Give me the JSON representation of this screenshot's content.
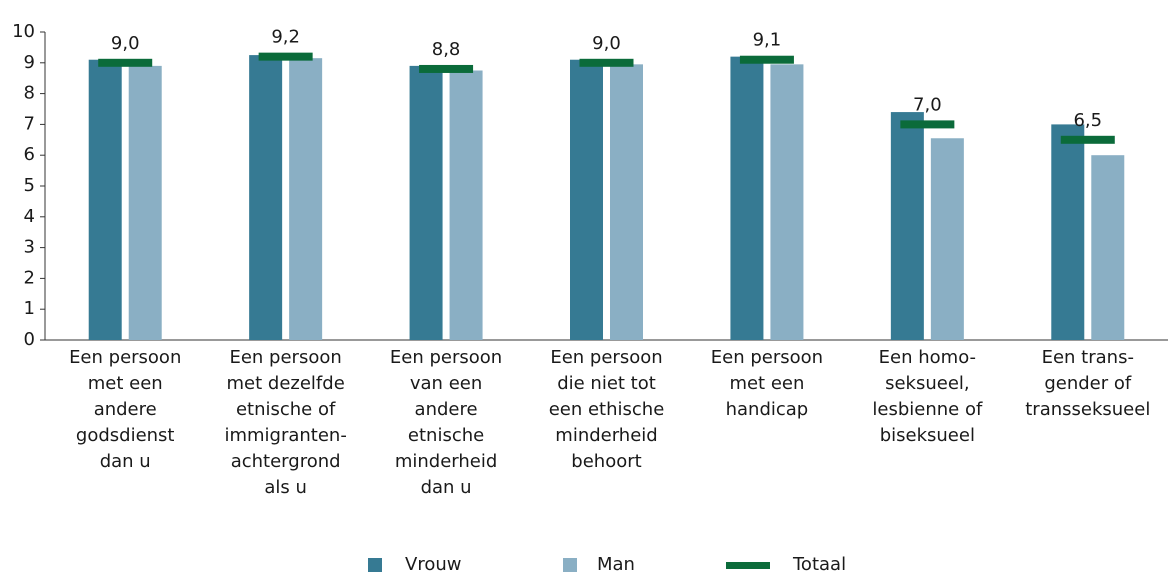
{
  "chart_data": {
    "type": "bar",
    "categories": [
      [
        "Een persoon",
        "met een",
        "andere",
        "godsdienst",
        "dan u"
      ],
      [
        "Een persoon",
        "met dezelfde",
        "etnische of",
        "immigranten-",
        "achtergrond",
        "als u"
      ],
      [
        "Een persoon",
        "van een",
        "andere",
        "etnische",
        "minderheid",
        "dan u"
      ],
      [
        "Een persoon",
        "die niet tot",
        "een ethische",
        "minderheid",
        "behoort"
      ],
      [
        "Een persoon",
        "met een",
        "handicap"
      ],
      [
        "Een homo-",
        "seksueel,",
        "lesbienne of",
        "biseksueel"
      ],
      [
        "Een trans-",
        "gender of",
        "transseksueel"
      ]
    ],
    "series": [
      {
        "name": "Vrouw",
        "color": "#367a93",
        "values": [
          9.1,
          9.25,
          8.9,
          9.1,
          9.2,
          7.4,
          7.0
        ]
      },
      {
        "name": "Man",
        "color": "#8aafc4",
        "values": [
          8.9,
          9.15,
          8.75,
          8.95,
          8.95,
          6.55,
          6.0
        ]
      },
      {
        "name": "Totaal",
        "color": "#0b6b3a",
        "marker": "line",
        "values": [
          9.0,
          9.2,
          8.8,
          9.0,
          9.1,
          7.0,
          6.5
        ],
        "value_labels": [
          "9,0",
          "9,2",
          "8,8",
          "9,0",
          "9,1",
          "7,0",
          "6,5"
        ]
      }
    ],
    "ylim": [
      0,
      10
    ],
    "yticks": [
      0,
      1,
      2,
      3,
      4,
      5,
      6,
      7,
      8,
      9,
      10
    ],
    "grid": false,
    "legend": "bottom"
  }
}
